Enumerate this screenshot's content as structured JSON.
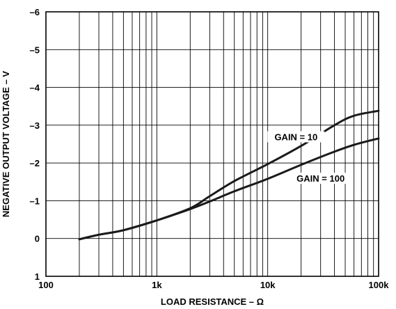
{
  "chart_data": {
    "type": "line",
    "xlabel": "LOAD RESISTANCE – Ω",
    "ylabel": "NEGATIVE OUTPUT VOLTAGE – V",
    "x_scale": "log",
    "xlim": [
      100,
      100000
    ],
    "ylim": [
      1,
      -6
    ],
    "x_ticks": [
      100,
      1000,
      10000,
      100000
    ],
    "x_tick_labels": [
      "100",
      "1k",
      "10k",
      "100k"
    ],
    "y_ticks": [
      -6,
      -5,
      -4,
      -3,
      -2,
      -1,
      0,
      1
    ],
    "y_tick_labels": [
      "–6",
      "–5",
      "–4",
      "–3",
      "–2",
      "–1",
      "0",
      "1"
    ],
    "grid": true,
    "series": [
      {
        "name": "GAIN = 10",
        "x": [
          200,
          300,
          500,
          1000,
          2000,
          3000,
          5000,
          10000,
          20000,
          40000,
          60000,
          100000
        ],
        "y": [
          0.02,
          -0.1,
          -0.22,
          -0.48,
          -0.8,
          -1.12,
          -1.52,
          -1.97,
          -2.45,
          -3.0,
          -3.25,
          -3.38
        ]
      },
      {
        "name": "GAIN = 100",
        "x": [
          200,
          300,
          500,
          1000,
          2000,
          3000,
          5000,
          10000,
          20000,
          40000,
          60000,
          100000
        ],
        "y": [
          0.02,
          -0.1,
          -0.22,
          -0.48,
          -0.78,
          -0.98,
          -1.25,
          -1.58,
          -1.95,
          -2.3,
          -2.48,
          -2.65
        ]
      }
    ]
  }
}
